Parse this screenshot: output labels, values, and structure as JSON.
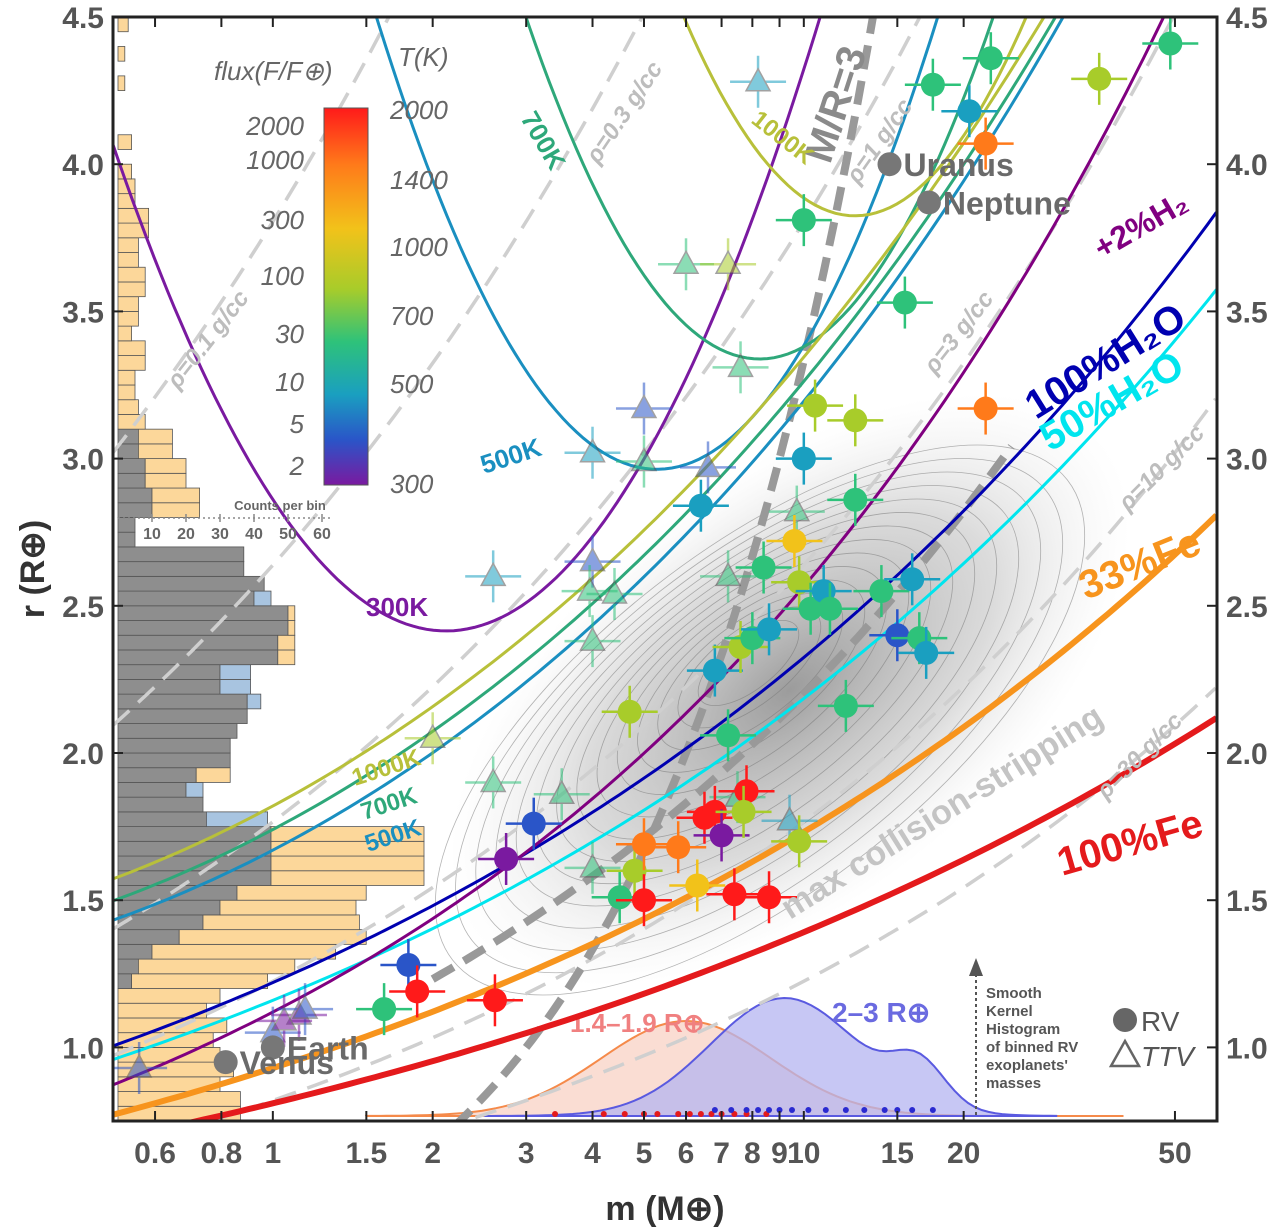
{
  "chart_data": {
    "type": "scatter",
    "xlabel": "m (M⊕)",
    "ylabel": "r (R⊕)",
    "xscale": "log",
    "xlim": [
      0.5,
      60
    ],
    "ylim": [
      0.75,
      4.5
    ],
    "x_ticks": [
      0.6,
      0.8,
      1,
      1.5,
      2,
      3,
      4,
      5,
      6,
      7,
      8,
      9,
      10,
      15,
      20,
      50
    ],
    "x_tick_labels": [
      "0.6",
      "0.8",
      "1",
      "1.5",
      "2",
      "3",
      "4",
      "5",
      "6",
      "7",
      "8",
      "9",
      "10",
      "15",
      "20",
      "50"
    ],
    "y_ticks": [
      1.0,
      1.5,
      2.0,
      2.5,
      3.0,
      3.5,
      4.0,
      4.5
    ],
    "y_tick_labels": [
      "1.0",
      "1.5",
      "2.0",
      "2.5",
      "3.0",
      "3.5",
      "4.0",
      "4.5"
    ],
    "colorbar": {
      "flux_title": "flux(F/F⊕)",
      "temp_title": "T(K)",
      "flux_labels": [
        "2000",
        "1000",
        "300",
        "100",
        "30",
        "10",
        "5",
        "2"
      ],
      "temp_labels": [
        "2000",
        "1400",
        "1000",
        "700",
        "500",
        "300"
      ],
      "colors": [
        "#ff1a1a",
        "#ff7a1a",
        "#f2c21a",
        "#a8cc2a",
        "#2ec27a",
        "#1a9fc0",
        "#2a55c8",
        "#7a1aa0"
      ]
    },
    "composition_curves": [
      {
        "name": "100%Fe",
        "color": "#e41a1c"
      },
      {
        "name": "33%Fe",
        "color": "#f7941d"
      },
      {
        "name": "50%H₂O",
        "color": "#00e5ee"
      },
      {
        "name": "100%H₂O",
        "color": "#0000b0"
      },
      {
        "name": "+2%H₂",
        "color": "#800080"
      }
    ],
    "density_lines": [
      "ρ=0.1 g/cc",
      "ρ=0.3 g/cc",
      "ρ=1 g/cc",
      "ρ=3 g/cc",
      "ρ=10 g/cc",
      "ρ=30 g/cc"
    ],
    "other_lines": [
      "M/R=3",
      "max collision-stripping"
    ],
    "temperature_curve_labels": [
      "300K",
      "500K",
      "700K",
      "1000K",
      "1000K",
      "700K",
      "500K"
    ],
    "planets": [
      {
        "name": "Uranus",
        "m": 14.5,
        "r": 4.0
      },
      {
        "name": "Neptune",
        "m": 17.2,
        "r": 3.87
      },
      {
        "name": "Earth",
        "m": 1.0,
        "r": 1.0
      },
      {
        "name": "Venus",
        "m": 0.815,
        "r": 0.95
      }
    ],
    "rv_points": [
      {
        "m": 1.8,
        "r": 1.28,
        "T": 500
      },
      {
        "m": 1.87,
        "r": 1.19,
        "T": 2000
      },
      {
        "m": 1.62,
        "r": 1.13,
        "T": 700
      },
      {
        "m": 2.62,
        "r": 1.16,
        "T": 2000
      },
      {
        "m": 3.1,
        "r": 1.76,
        "T": 400
      },
      {
        "m": 2.75,
        "r": 1.64,
        "T": 350
      },
      {
        "m": 4.5,
        "r": 1.51,
        "T": 800
      },
      {
        "m": 4.8,
        "r": 1.6,
        "T": 1000
      },
      {
        "m": 5.0,
        "r": 1.5,
        "T": 2000
      },
      {
        "m": 5.0,
        "r": 1.69,
        "T": 1800
      },
      {
        "m": 5.8,
        "r": 1.68,
        "T": 1700
      },
      {
        "m": 6.5,
        "r": 1.78,
        "T": 2000
      },
      {
        "m": 6.8,
        "r": 1.8,
        "T": 2000
      },
      {
        "m": 6.3,
        "r": 1.55,
        "T": 1400
      },
      {
        "m": 7.0,
        "r": 1.72,
        "T": 350
      },
      {
        "m": 7.4,
        "r": 1.52,
        "T": 1900
      },
      {
        "m": 7.8,
        "r": 1.87,
        "T": 2000
      },
      {
        "m": 8.6,
        "r": 1.51,
        "T": 2000
      },
      {
        "m": 7.7,
        "r": 1.8,
        "T": 1100
      },
      {
        "m": 9.8,
        "r": 1.7,
        "T": 1200
      },
      {
        "m": 4.7,
        "r": 2.14,
        "T": 1200
      },
      {
        "m": 6.8,
        "r": 2.28,
        "T": 550
      },
      {
        "m": 7.2,
        "r": 2.06,
        "T": 900
      },
      {
        "m": 7.6,
        "r": 2.36,
        "T": 1100
      },
      {
        "m": 8.0,
        "r": 2.39,
        "T": 800
      },
      {
        "m": 8.6,
        "r": 2.42,
        "T": 600
      },
      {
        "m": 8.4,
        "r": 2.63,
        "T": 800
      },
      {
        "m": 9.6,
        "r": 2.72,
        "T": 1400
      },
      {
        "m": 9.8,
        "r": 2.58,
        "T": 1200
      },
      {
        "m": 10.3,
        "r": 2.49,
        "T": 700
      },
      {
        "m": 10.9,
        "r": 2.55,
        "T": 600
      },
      {
        "m": 11.2,
        "r": 2.49,
        "T": 900
      },
      {
        "m": 12.0,
        "r": 2.16,
        "T": 900
      },
      {
        "m": 14.0,
        "r": 2.55,
        "T": 800
      },
      {
        "m": 15.0,
        "r": 2.4,
        "T": 500
      },
      {
        "m": 16.0,
        "r": 2.59,
        "T": 600
      },
      {
        "m": 16.5,
        "r": 2.39,
        "T": 900
      },
      {
        "m": 17.0,
        "r": 2.34,
        "T": 650
      },
      {
        "m": 6.4,
        "r": 2.84,
        "T": 600
      },
      {
        "m": 10.0,
        "r": 3.0,
        "T": 550
      },
      {
        "m": 10.5,
        "r": 3.18,
        "T": 1100
      },
      {
        "m": 12.5,
        "r": 3.13,
        "T": 1000
      },
      {
        "m": 12.5,
        "r": 2.86,
        "T": 900
      },
      {
        "m": 22.0,
        "r": 3.17,
        "T": 1700
      },
      {
        "m": 15.5,
        "r": 3.53,
        "T": 800
      },
      {
        "m": 10.0,
        "r": 3.81,
        "T": 800
      },
      {
        "m": 20.5,
        "r": 4.18,
        "T": 600
      },
      {
        "m": 22.0,
        "r": 4.07,
        "T": 1700
      },
      {
        "m": 17.5,
        "r": 4.27,
        "T": 900
      },
      {
        "m": 22.5,
        "r": 4.36,
        "T": 800
      },
      {
        "m": 36.0,
        "r": 4.29,
        "T": 1000
      },
      {
        "m": 49.0,
        "r": 4.41,
        "T": 900
      }
    ],
    "ttv_points": [
      {
        "m": 0.56,
        "r": 0.93,
        "T": 400
      },
      {
        "m": 1.0,
        "r": 1.05,
        "T": 500
      },
      {
        "m": 1.12,
        "r": 1.11,
        "T": 350
      },
      {
        "m": 1.15,
        "r": 1.13,
        "T": 400
      },
      {
        "m": 1.05,
        "r": 1.09,
        "T": 350
      },
      {
        "m": 2.0,
        "r": 2.05,
        "T": 1000
      },
      {
        "m": 2.6,
        "r": 1.9,
        "T": 700
      },
      {
        "m": 3.5,
        "r": 1.86,
        "T": 800
      },
      {
        "m": 4.0,
        "r": 1.61,
        "T": 700
      },
      {
        "m": 7.5,
        "r": 1.85,
        "T": 900
      },
      {
        "m": 9.4,
        "r": 1.77,
        "T": 600
      },
      {
        "m": 2.6,
        "r": 2.6,
        "T": 600
      },
      {
        "m": 4.0,
        "r": 2.65,
        "T": 500
      },
      {
        "m": 3.95,
        "r": 2.55,
        "T": 700
      },
      {
        "m": 4.4,
        "r": 2.54,
        "T": 800
      },
      {
        "m": 4.0,
        "r": 2.38,
        "T": 800
      },
      {
        "m": 7.2,
        "r": 2.6,
        "T": 700
      },
      {
        "m": 9.7,
        "r": 2.82,
        "T": 700
      },
      {
        "m": 4.0,
        "r": 3.02,
        "T": 600
      },
      {
        "m": 5.0,
        "r": 2.99,
        "T": 700
      },
      {
        "m": 5.0,
        "r": 3.17,
        "T": 500
      },
      {
        "m": 6.6,
        "r": 2.97,
        "T": 500
      },
      {
        "m": 6.0,
        "r": 3.66,
        "T": 800
      },
      {
        "m": 7.2,
        "r": 3.66,
        "T": 1000
      },
      {
        "m": 7.6,
        "r": 3.31,
        "T": 700
      },
      {
        "m": 8.2,
        "r": 4.28,
        "T": 600
      }
    ],
    "mass_kde_labels": [
      "1.4–1.9 R⊕",
      "2–3 R⊕"
    ],
    "histogram": {
      "axis_label": "Counts per bin",
      "tick_labels": [
        "10",
        "20",
        "30",
        "40",
        "50",
        "60"
      ]
    },
    "legend": [
      "RV",
      "TTV"
    ],
    "annotation": "Smooth Kernel Histogram of binned RV exoplanets' masses"
  }
}
